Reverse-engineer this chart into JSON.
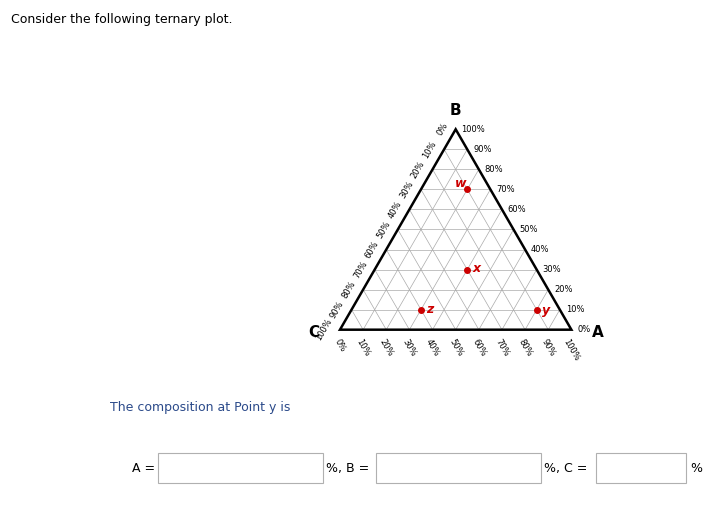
{
  "title": "Consider the following ternary plot.",
  "points": {
    "w": {
      "a": 0.2,
      "b": 0.7,
      "c": 0.1,
      "label": "w"
    },
    "x": {
      "a": 0.4,
      "b": 0.3,
      "c": 0.3,
      "label": "x"
    },
    "z": {
      "a": 0.3,
      "b": 0.1,
      "c": 0.6,
      "label": "z"
    },
    "y": {
      "a": 0.8,
      "b": 0.1,
      "c": 0.1,
      "label": "y"
    }
  },
  "point_color": "#cc0000",
  "triangle_color": "#000000",
  "grid_color": "#aaaaaa",
  "bg_color": "#ffffff",
  "text_color": "#000000",
  "bottom_text": "The composition at Point y is",
  "bottom_text_color": "#2b4a8a",
  "title_fontsize": 9,
  "vertex_fontsize": 11,
  "tick_fontsize": 6,
  "point_label_fontsize": 9
}
